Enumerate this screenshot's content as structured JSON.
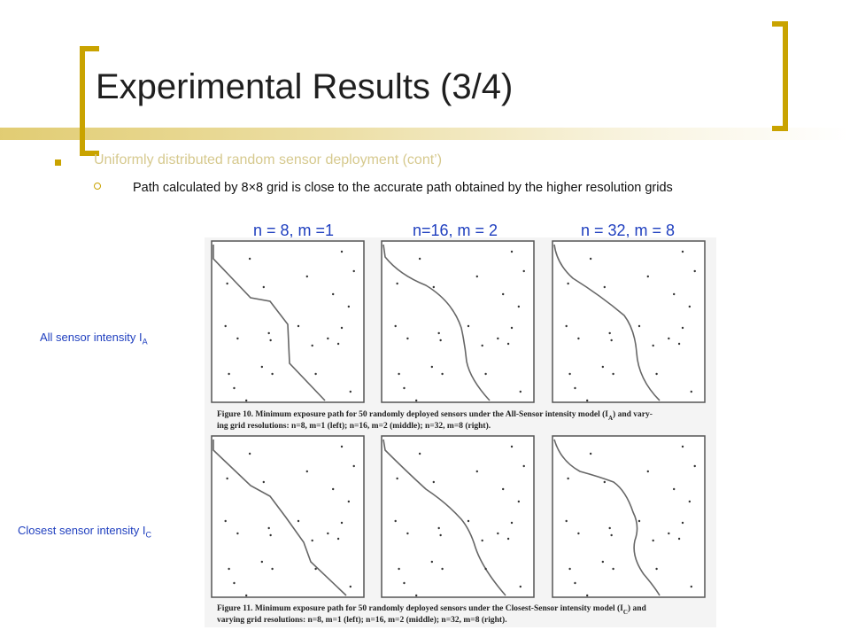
{
  "slide": {
    "title": "Experimental Results (3/4)",
    "bullet1": "Uniformly distributed random sensor deployment (cont’)",
    "bullet2": "Path calculated by 8×8 grid is close to the accurate path obtained by the higher resolution grids"
  },
  "columns": [
    {
      "label": "n = 8, m =1"
    },
    {
      "label": "n=16, m = 2"
    },
    {
      "label": "n = 32, m = 8"
    }
  ],
  "rows": [
    {
      "label_prefix": "All sensor intensity I",
      "label_sub": "A"
    },
    {
      "label_prefix": "Closest sensor intensity I",
      "label_sub": "C"
    }
  ],
  "figures": {
    "fig10_caption_line1": "Figure 10. Minimum exposure path for 50 randomly deployed sensors under the All-Sensor intensity model (I",
    "fig10_caption_sub": "A",
    "fig10_caption_line1_end": ") and vary-",
    "fig10_caption_line2": "ing grid resolutions: n=8, m=1 (left); n=16, m=2 (middle); n=32, m=8 (right).",
    "fig11_caption_line1": "Figure 11. Minimum exposure path for 50 randomly deployed sensors under the Closest-Sensor intensity model (I",
    "fig11_caption_sub": "C",
    "fig11_caption_line1_end": ") and",
    "fig11_caption_line2": "varying grid resolutions: n=8, m=1 (left); n=16, m=2 (middle); n=32, m=8 (right)."
  },
  "colors": {
    "accent": "#c9a300",
    "label_blue": "#1f3fbf",
    "faded_text": "#d6c98e"
  }
}
